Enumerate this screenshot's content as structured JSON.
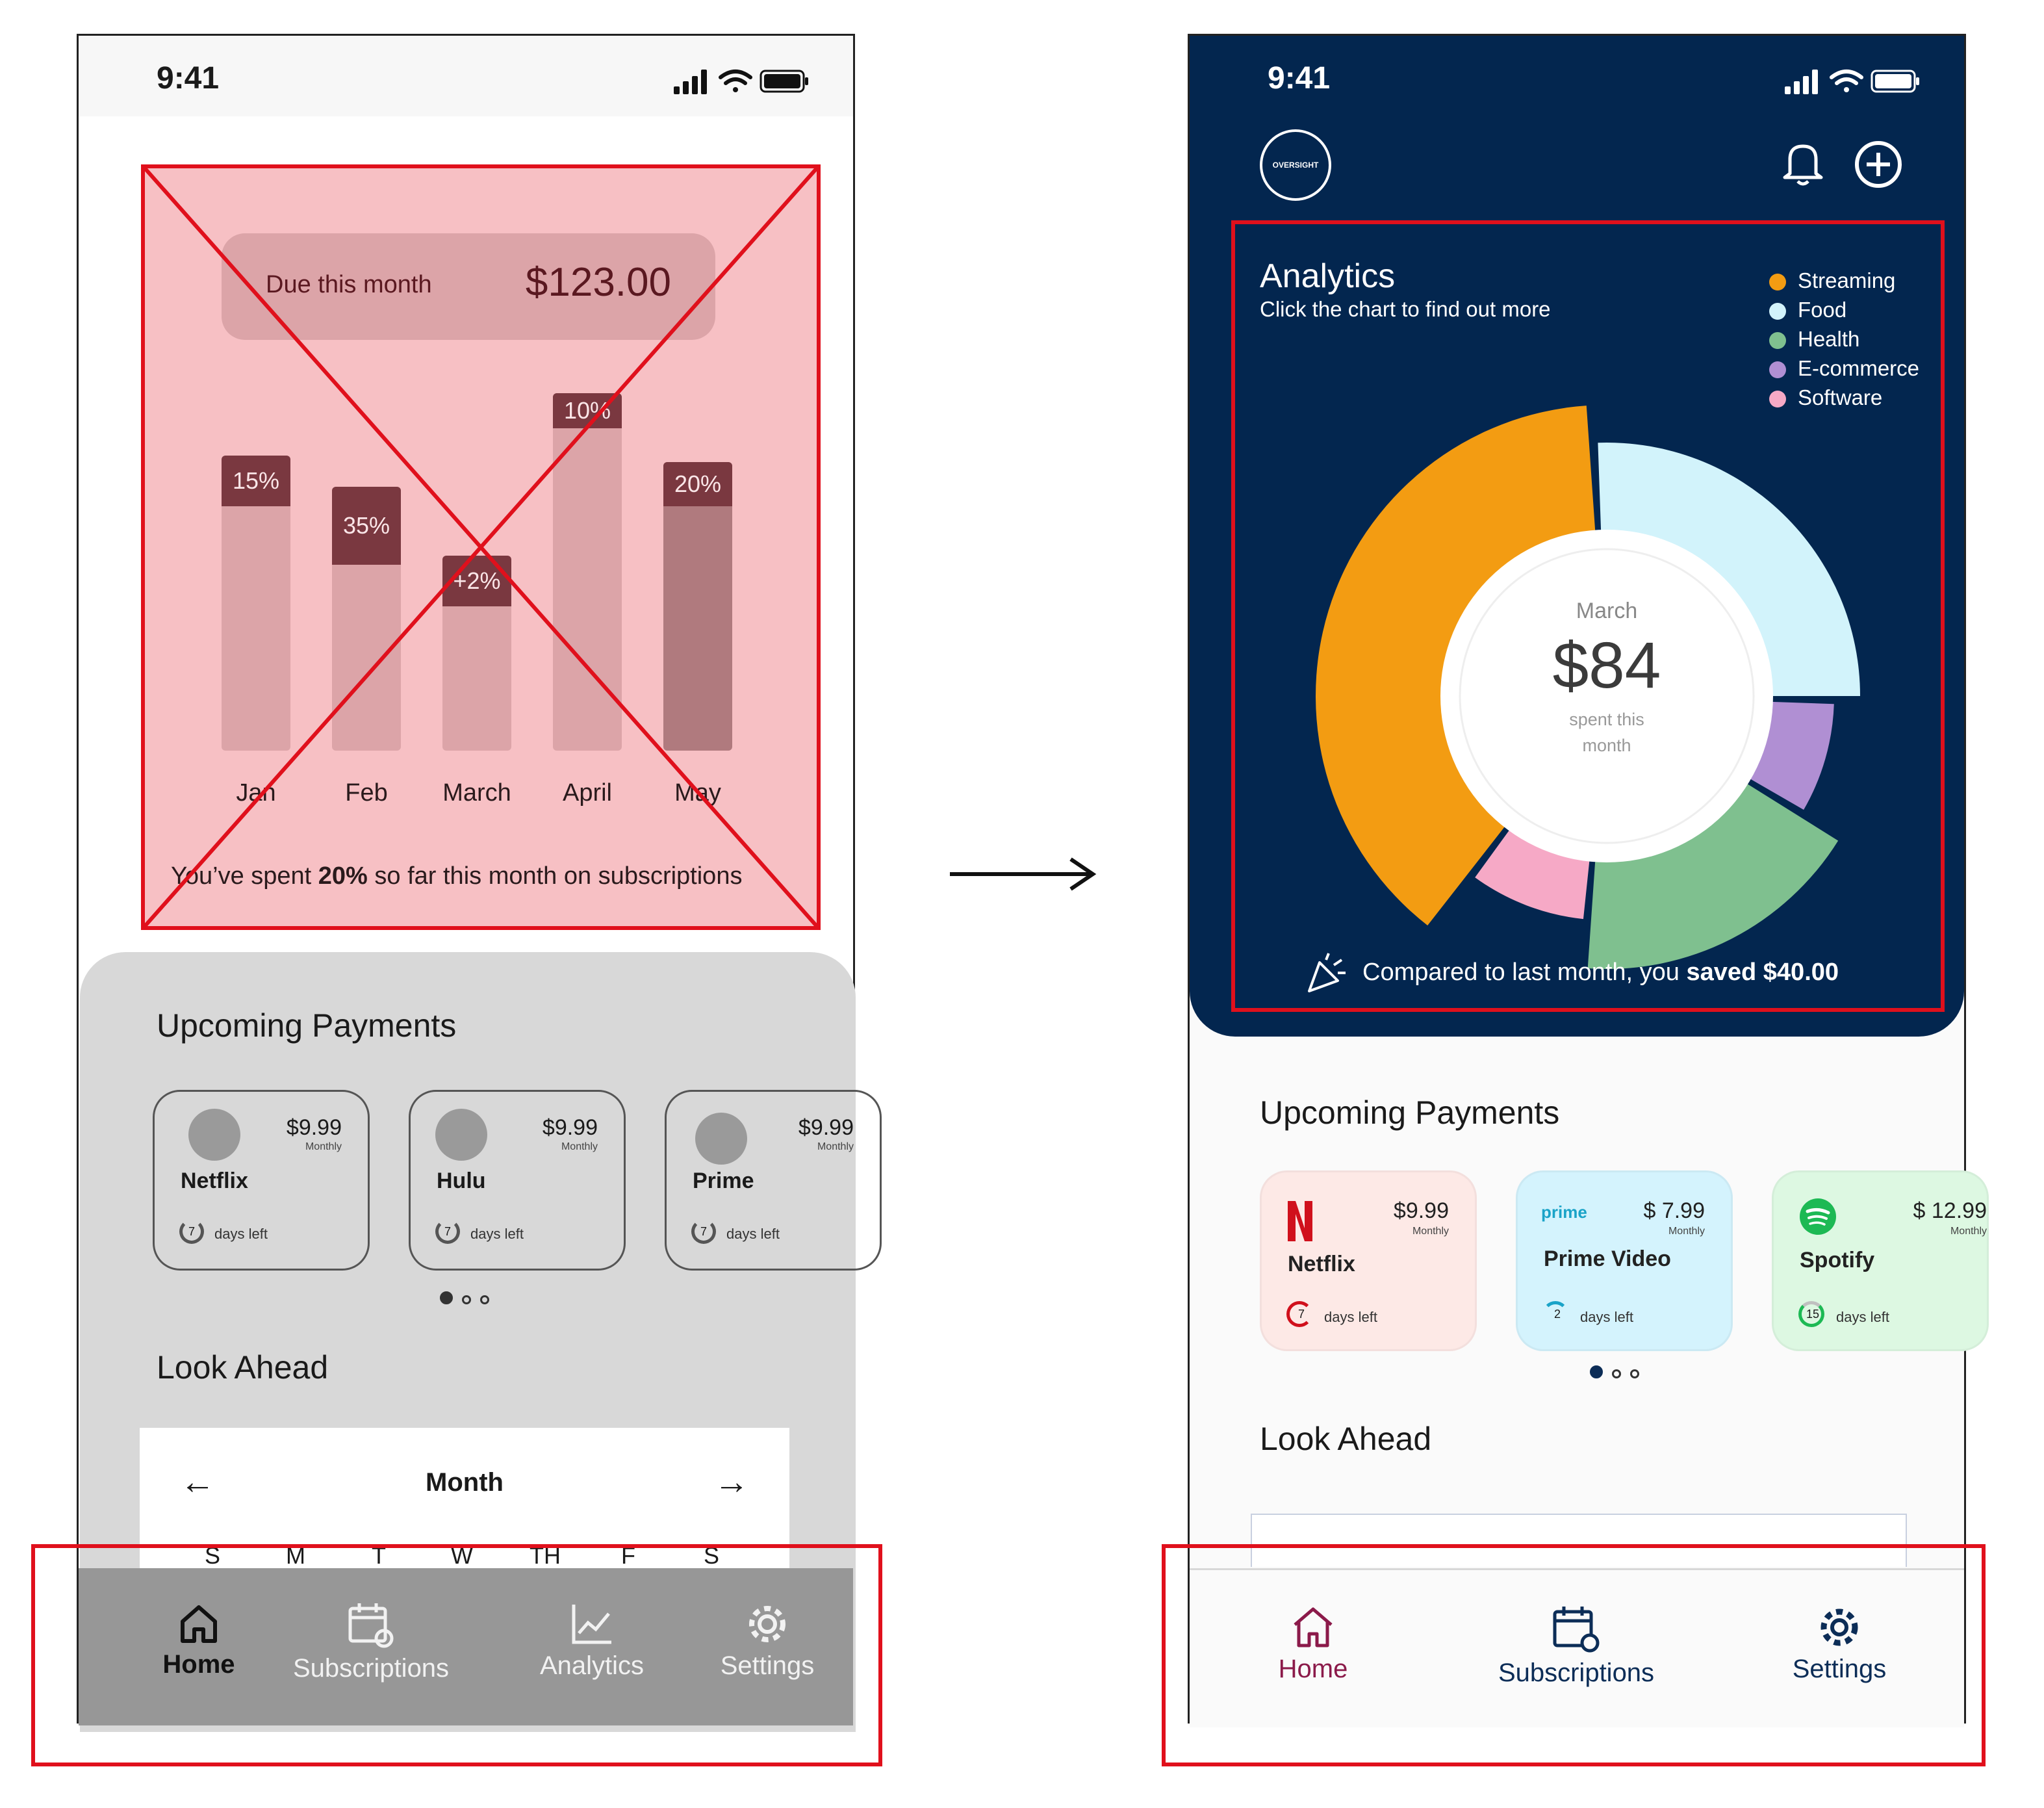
{
  "status_bar": {
    "time": "9:41"
  },
  "old_design": {
    "due": {
      "label": "Due this month",
      "amount": "$123.00"
    },
    "bars": [
      {
        "month": "Jan",
        "percent_label": "15%"
      },
      {
        "month": "Feb",
        "percent_label": "35%"
      },
      {
        "month": "March",
        "percent_label": "+2%"
      },
      {
        "month": "April",
        "percent_label": "10%"
      },
      {
        "month": "May",
        "percent_label": "20%"
      }
    ],
    "spent_note": {
      "prefix": "You’ve spent ",
      "bold": "20%",
      "suffix": " so far this month on subscriptions"
    },
    "upcoming_title": "Upcoming Payments",
    "cards": [
      {
        "name": "Netflix",
        "price": "$9.99",
        "frequency": "Monthly",
        "days_number": "7",
        "days_label": "days left"
      },
      {
        "name": "Hulu",
        "price": "$9.99",
        "frequency": "Monthly",
        "days_number": "7",
        "days_label": "days left"
      },
      {
        "name": "Prime",
        "price": "$9.99",
        "frequency": "Monthly",
        "days_number": "7",
        "days_label": "days left"
      }
    ],
    "look_ahead_title": "Look Ahead",
    "calendar": {
      "month_label": "Month",
      "weekdays": [
        "S",
        "M",
        "T",
        "W",
        "TH",
        "F",
        "S"
      ]
    },
    "nav": [
      {
        "label": "Home",
        "icon": "home-icon"
      },
      {
        "label": "Subscriptions",
        "icon": "calendar-refresh-icon"
      },
      {
        "label": "Analytics",
        "icon": "chart-line-icon"
      },
      {
        "label": "Settings",
        "icon": "gear-icon"
      }
    ]
  },
  "new_design": {
    "brand": "OVERSIGHT",
    "analytics": {
      "title": "Analytics",
      "subtitle": "Click the chart to find out more",
      "legend": [
        {
          "label": "Streaming",
          "color": "#f39c12"
        },
        {
          "label": "Food",
          "color": "#d2f3fb"
        },
        {
          "label": "Health",
          "color": "#7fc08f"
        },
        {
          "label": "E-commerce",
          "color": "#b08fd3"
        },
        {
          "label": "Software",
          "color": "#f6a9c6"
        }
      ],
      "center": {
        "month": "March",
        "amount": "$84",
        "note_line1": "spent this",
        "note_line2": "month"
      },
      "saved": {
        "prefix": "Compared to last month, you ",
        "bold": "saved $40.00"
      }
    },
    "upcoming_title": "Upcoming Payments",
    "cards": [
      {
        "name": "Netflix",
        "price": "$9.99",
        "frequency": "Monthly",
        "days_number": "7",
        "days_label": "days left",
        "bg": "#fde9e6",
        "ring_color": "#d0101c"
      },
      {
        "name": "Prime Video",
        "price": "$ 7.99",
        "frequency": "Monthly",
        "days_number": "2",
        "days_label": "days left",
        "bg": "#d4f3fd",
        "ring_color": "#1aa3c8",
        "logo_text": "prime"
      },
      {
        "name": "Spotify",
        "price": "$ 12.99",
        "frequency": "Monthly",
        "days_number": "15",
        "days_label": "days left",
        "bg": "#ddf8e2",
        "ring_color": "#1db954"
      }
    ],
    "look_ahead_title": "Look Ahead",
    "nav": [
      {
        "label": "Home",
        "icon": "home-icon",
        "color": "#8b1a4a"
      },
      {
        "label": "Subscriptions",
        "icon": "calendar-refresh-icon",
        "color": "#0c2d57"
      },
      {
        "label": "Settings",
        "icon": "gear-icon",
        "color": "#0c2d57"
      }
    ]
  }
}
